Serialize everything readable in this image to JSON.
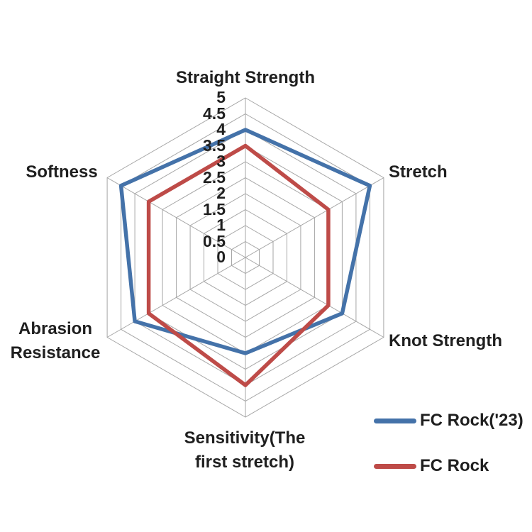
{
  "chart_data": {
    "type": "radar",
    "categories": [
      "Straight Strength",
      "Stretch",
      "Knot Strength",
      "Sensitivity(The first stretch)",
      "Abrasion Resistance",
      "Softness"
    ],
    "series": [
      {
        "name": "FC Rock('23)",
        "color": "#4472A9",
        "values": [
          4,
          4.5,
          3.5,
          3,
          4,
          4.5
        ]
      },
      {
        "name": "FC Rock",
        "color": "#BE4B48",
        "values": [
          3.5,
          3,
          3,
          4,
          3.5,
          3.5
        ]
      }
    ],
    "axis": {
      "min": 0,
      "max": 5,
      "step": 0.5
    },
    "tick_labels": [
      "0",
      "0.5",
      "1",
      "1.5",
      "2",
      "2.5",
      "3",
      "3.5",
      "4",
      "4.5",
      "5"
    ],
    "grid": {
      "rings": 10,
      "color": "#A6A6A6",
      "spokes": 6
    },
    "legend": {
      "position": "bottom-right",
      "entries": [
        "FC Rock('23)",
        "FC Rock"
      ]
    },
    "text_color": "#1f1f1f"
  }
}
